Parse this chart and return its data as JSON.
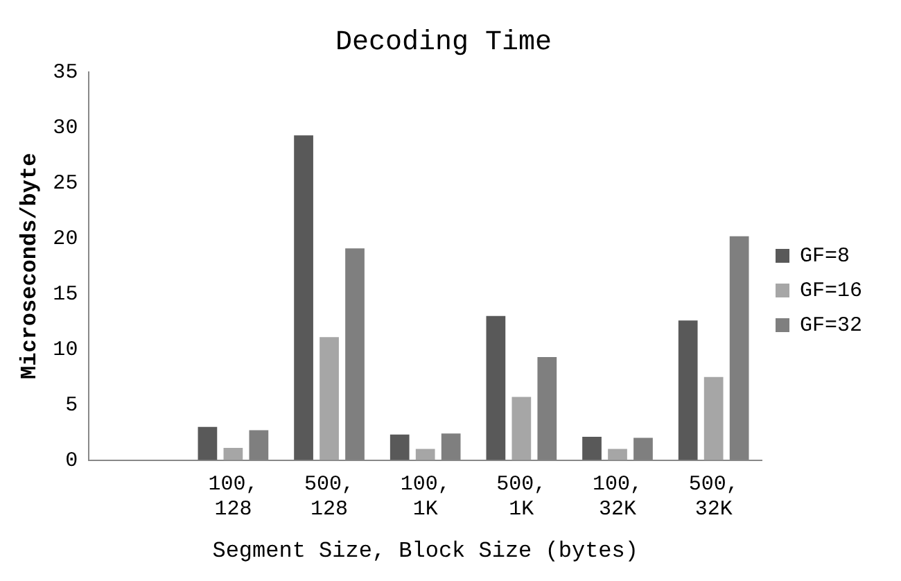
{
  "chart_data": {
    "type": "bar",
    "title": "Decoding Time",
    "xlabel": "Segment Size, Block Size (bytes)",
    "ylabel": "Microseconds/byte",
    "categories": [
      null,
      "100, 128",
      "500, 128",
      "100, 1K",
      "500, 1K",
      "100, 32K",
      "500, 32K"
    ],
    "series": [
      {
        "name": "GF=8",
        "color": "#595959",
        "values": [
          null,
          3.0,
          29.3,
          2.3,
          13.0,
          2.1,
          12.6
        ]
      },
      {
        "name": "GF=16",
        "color": "#a6a6a6",
        "values": [
          null,
          1.1,
          11.1,
          1.0,
          5.7,
          1.0,
          7.5
        ]
      },
      {
        "name": "GF=32",
        "color": "#7f7f7f",
        "values": [
          null,
          2.7,
          19.1,
          2.4,
          9.3,
          2.0,
          20.2
        ]
      }
    ],
    "ylim": [
      0,
      35
    ],
    "yticks": [
      0,
      5,
      10,
      15,
      20,
      25,
      30,
      35
    ],
    "grid": false,
    "legend": "right"
  }
}
